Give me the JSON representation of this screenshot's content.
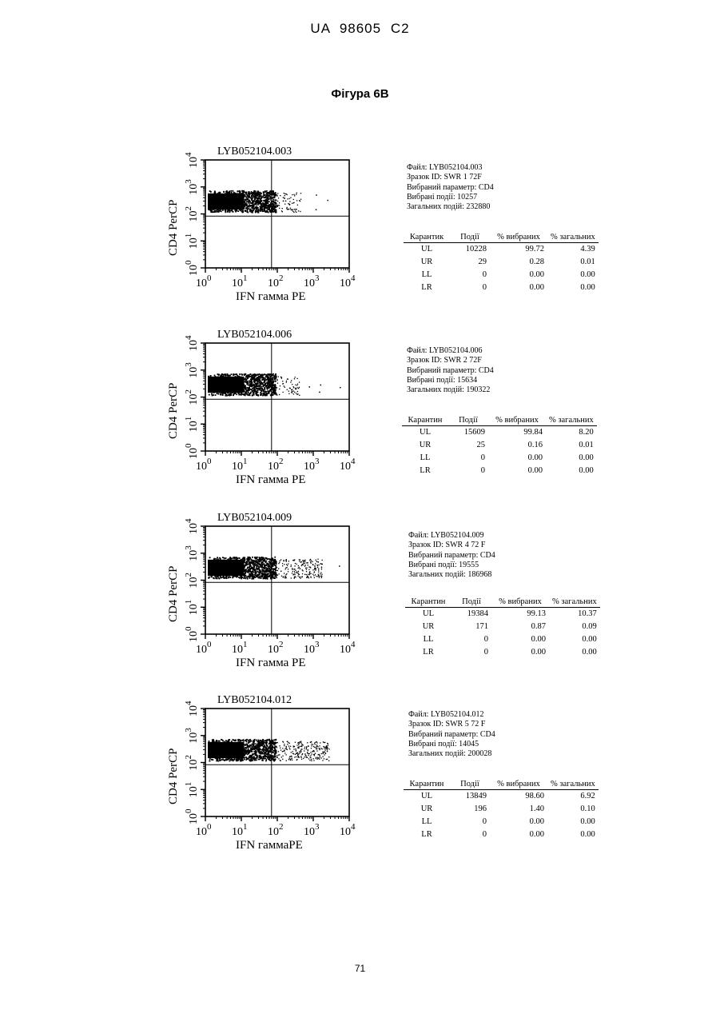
{
  "header": {
    "title": "UA   98605   C2"
  },
  "figure_title": "Фігура 6В",
  "page_number": "71",
  "panels": [
    {
      "plot_title": "LYB052104.003",
      "x_label": "IFN гамма  PE",
      "y_label": "CD4 PerCP",
      "info": {
        "file": "Файл: LYB052104.003",
        "sample": "Зразок ID: SWR 1 72F",
        "parameter": "Вибраний параметр: CD4",
        "selected": "Вибрані події: 10257",
        "total": "Загальних подій: 232880"
      },
      "table": {
        "headers": [
          "Карантик",
          "Події",
          "% вибраних",
          "% загальних"
        ],
        "rows": [
          [
            "UL",
            "10228",
            "99.72",
            "4.39"
          ],
          [
            "UR",
            "29",
            "0.28",
            "0.01"
          ],
          [
            "LL",
            "0",
            "0.00",
            "0.00"
          ],
          [
            "LR",
            "0",
            "0.00",
            "0.00"
          ]
        ]
      },
      "spread": 0.25
    },
    {
      "plot_title": "LYB052104.006",
      "x_label": "IFN гамма  PE",
      "y_label": "CD4 PerCP",
      "info": {
        "file": "Файл: LYB052104.006",
        "sample": "Зразок ID: SWR 2 72F",
        "parameter": "Вибраний параметр: CD4",
        "selected": "Вибрані події: 15634",
        "total": "Загальних подій: 190322"
      },
      "table": {
        "headers": [
          "Карантин",
          "Події",
          "% вибраних",
          "% загальних"
        ],
        "rows": [
          [
            "UL",
            "15609",
            "99.84",
            "8.20"
          ],
          [
            "UR",
            "25",
            "0.16",
            "0.01"
          ],
          [
            "LL",
            "0",
            "0.00",
            "0.00"
          ],
          [
            "LR",
            "0",
            "0.00",
            "0.00"
          ]
        ]
      },
      "spread": 0.22
    },
    {
      "plot_title": "LYB052104.009",
      "x_label": "IFN гамма  PE",
      "y_label": "CD4 PerCP",
      "info": {
        "file": "Файл: LYB052104.009",
        "sample": "Зразок ID: SWR 4 72 F",
        "parameter": "Вибраний параметр: CD4",
        "selected": "Вибрані події: 19555",
        "total": "Загальних подій: 186968"
      },
      "table": {
        "headers": [
          "Карантин",
          "Події",
          "% вибраних",
          "% загальних"
        ],
        "rows": [
          [
            "UL",
            "19384",
            "99.13",
            "10.37"
          ],
          [
            "UR",
            "171",
            "0.87",
            "0.09"
          ],
          [
            "LL",
            "0",
            "0.00",
            "0.00"
          ],
          [
            "LR",
            "0",
            "0.00",
            "0.00"
          ]
        ]
      },
      "spread": 0.75
    },
    {
      "plot_title": "LYB052104.012",
      "x_label": "IFN  гаммаPE",
      "y_label": "CD4 PerCP",
      "info": {
        "file": "Файл: LYB052104.012",
        "sample": "Зразок ID: SWR 5 72 F",
        "parameter": "Вибраний параметр: CD4",
        "selected": "Вибрані події: 14045",
        "total": "Загальних подій: 200028"
      },
      "table": {
        "headers": [
          "Карантин",
          "Події",
          "% вибраних",
          "% загальних"
        ],
        "rows": [
          [
            "UL",
            "13849",
            "98.60",
            "6.92"
          ],
          [
            "UR",
            "196",
            "1.40",
            "0.10"
          ],
          [
            "LL",
            "0",
            "0.00",
            "0.00"
          ],
          [
            "LR",
            "0",
            "0.00",
            "0.00"
          ]
        ]
      },
      "spread": 0.9
    }
  ],
  "axis_ticks": {
    "exponents": [
      "0",
      "1",
      "2",
      "3",
      "4"
    ],
    "base": "10"
  }
}
